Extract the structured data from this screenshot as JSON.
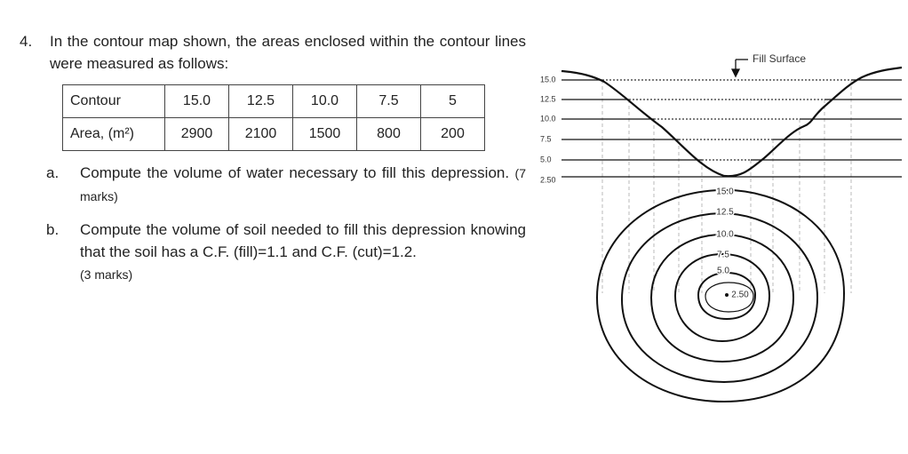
{
  "question": {
    "number": "4.",
    "text": "In the contour map shown, the areas enclosed within the contour lines were measured as follows:"
  },
  "table": {
    "rows": [
      [
        "Contour",
        "15.0",
        "12.5",
        "10.0",
        "7.5",
        "5"
      ],
      [
        "Area, (m²)",
        "2900",
        "2100",
        "1500",
        "800",
        "200"
      ]
    ]
  },
  "parts": [
    {
      "label": "a.",
      "text": "Compute the volume of water necessary to fill this depression.",
      "marks": "(7 marks)"
    },
    {
      "label": "b.",
      "text": "Compute the volume of soil needed to fill this depression knowing that the soil has a C.F. (fill)=1.1 and C.F. (cut)=1.2.",
      "marks": "(3 marks)"
    }
  ],
  "figure": {
    "fill_label": "Fill Surface",
    "section_levels": [
      "15.0",
      "12.5",
      "10.0",
      "7.5",
      "5.0",
      "2.50"
    ],
    "contour_labels": [
      "15.0",
      "12.5",
      "10.0",
      "7.5",
      "5.0",
      "2.50"
    ]
  }
}
